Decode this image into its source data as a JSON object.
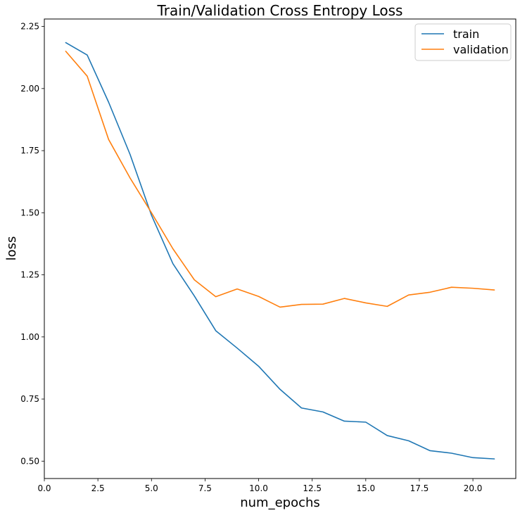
{
  "chart_data": {
    "type": "line",
    "title": "Train/Validation Cross Entropy Loss",
    "xlabel": "num_epochs",
    "ylabel": "loss",
    "xlim": [
      0.0,
      22.0
    ],
    "ylim": [
      0.43,
      2.28
    ],
    "xticks": [
      0.0,
      2.5,
      5.0,
      7.5,
      10.0,
      12.5,
      15.0,
      17.5,
      20.0
    ],
    "xtick_labels": [
      "0.0",
      "2.5",
      "5.0",
      "7.5",
      "10.0",
      "12.5",
      "15.0",
      "17.5",
      "20.0"
    ],
    "yticks": [
      0.5,
      0.75,
      1.0,
      1.25,
      1.5,
      1.75,
      2.0,
      2.25
    ],
    "ytick_labels": [
      "0.50",
      "0.75",
      "1.00",
      "1.25",
      "1.50",
      "1.75",
      "2.00",
      "2.25"
    ],
    "grid": false,
    "legend_position": "top-right",
    "x": [
      1,
      2,
      3,
      4,
      5,
      6,
      7,
      8,
      9,
      10,
      11,
      12,
      13,
      14,
      15,
      16,
      17,
      18,
      19,
      20,
      21
    ],
    "series": [
      {
        "name": "train",
        "color": "#1f77b4",
        "values": [
          2.185,
          2.135,
          1.945,
          1.735,
          1.49,
          1.295,
          1.165,
          1.025,
          0.955,
          0.882,
          0.789,
          0.714,
          0.698,
          0.661,
          0.657,
          0.603,
          0.582,
          0.542,
          0.532,
          0.514,
          0.509
        ]
      },
      {
        "name": "validation",
        "color": "#ff7f0e",
        "values": [
          2.15,
          2.05,
          1.795,
          1.64,
          1.5,
          1.355,
          1.23,
          1.162,
          1.193,
          1.163,
          1.12,
          1.131,
          1.132,
          1.155,
          1.137,
          1.123,
          1.169,
          1.18,
          1.2,
          1.196,
          1.189
        ]
      }
    ]
  }
}
